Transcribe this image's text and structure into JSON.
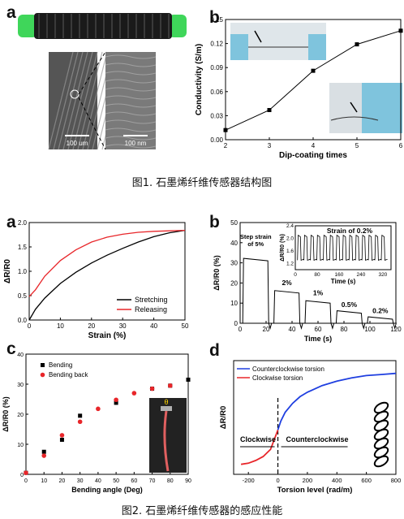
{
  "figure1": {
    "caption": "图1. 石墨烯纤维传感器结构图",
    "panel_a": {
      "letter": "a",
      "scale_left": "100 um",
      "scale_right": "100 nm"
    },
    "panel_b": {
      "letter": "b"
    }
  },
  "figure2": {
    "caption": "图2. 石墨烯纤维传感器的感应性能",
    "panel_a": {
      "letter": "a"
    },
    "panel_b": {
      "letter": "b",
      "inset_title": "Strain of 0.2%",
      "annotations": [
        "Step strain of 5%",
        "2%",
        "1%",
        "0.5%",
        "0.2%"
      ]
    },
    "panel_c": {
      "letter": "c",
      "photo_label": "θ"
    },
    "panel_d": {
      "letter": "d",
      "annotations": {
        "left": "Clockwise",
        "right": "Counterclockwise"
      }
    }
  },
  "colors": {
    "fiber_green": "#3fd65a",
    "stretch": "#000000",
    "release": "#e8262a",
    "ccw": "#1f3fe0",
    "cw": "#e8262a"
  },
  "chart_data": [
    {
      "id": "fig1b",
      "type": "line",
      "xlabel": "Dip-coating times",
      "ylabel": "Conductivity (S/m)",
      "xlim": [
        2,
        6
      ],
      "ylim": [
        0.0,
        0.15
      ],
      "xticks": [
        "2",
        "3",
        "4",
        "5",
        "6"
      ],
      "yticks": [
        "0.00",
        "0.03",
        "0.06",
        "0.09",
        "0.12",
        "0.15"
      ],
      "series": [
        {
          "x": [
            2,
            3,
            4,
            5,
            6
          ],
          "values": [
            0.012,
            0.037,
            0.086,
            0.119,
            0.136
          ]
        }
      ]
    },
    {
      "id": "fig2a",
      "type": "line",
      "xlabel": "Strain (%)",
      "ylabel": "ΔR/R0",
      "xlim": [
        0,
        50
      ],
      "ylim": [
        0.0,
        2.0
      ],
      "xticks": [
        "0",
        "10",
        "20",
        "30",
        "40",
        "50"
      ],
      "yticks": [
        "0.0",
        "0.5",
        "1.0",
        "1.5",
        "2.0"
      ],
      "legend": "bottom-right",
      "series": [
        {
          "name": "Stretching",
          "x": [
            0,
            2,
            5,
            10,
            15,
            20,
            25,
            30,
            35,
            40,
            45,
            50
          ],
          "values": [
            0.0,
            0.22,
            0.45,
            0.75,
            0.98,
            1.17,
            1.33,
            1.47,
            1.6,
            1.71,
            1.79,
            1.84
          ]
        },
        {
          "name": "Releasing",
          "x": [
            0,
            2,
            5,
            10,
            15,
            20,
            25,
            30,
            35,
            40,
            45,
            50
          ],
          "values": [
            0.48,
            0.62,
            0.9,
            1.22,
            1.44,
            1.6,
            1.7,
            1.76,
            1.8,
            1.82,
            1.83,
            1.84
          ]
        }
      ]
    },
    {
      "id": "fig2b",
      "type": "line",
      "xlabel": "Time (s)",
      "ylabel": "ΔR/R0 (%)",
      "xlim": [
        0,
        120
      ],
      "ylim": [
        0,
        50
      ],
      "xticks": [
        "0",
        "20",
        "40",
        "60",
        "80",
        "100",
        "120"
      ],
      "yticks": [
        "0",
        "10",
        "20",
        "30",
        "40",
        "50"
      ],
      "steps": [
        {
          "start": 2,
          "end": 22,
          "level": 31
        },
        {
          "start": 26,
          "end": 46,
          "level": 15
        },
        {
          "start": 50,
          "end": 70,
          "level": 10
        },
        {
          "start": 74,
          "end": 94,
          "level": 5
        },
        {
          "start": 98,
          "end": 118,
          "level": 2
        }
      ],
      "inset": {
        "xlabel": "Time (s)",
        "ylabel": "ΔR/R0 (%)",
        "xlim": [
          0,
          350
        ],
        "ylim": [
          1.0,
          2.4
        ],
        "xticks": [
          "0",
          "80",
          "160",
          "240",
          "320"
        ],
        "yticks": [
          "1.2",
          "1.6",
          "2.0",
          "2.4"
        ],
        "cycles": 14,
        "high": 2.1,
        "low": 1.3
      }
    },
    {
      "id": "fig2c",
      "type": "scatter",
      "xlabel": "Bending angle (Deg)",
      "ylabel": "ΔR/R0 (%)",
      "xlim": [
        0,
        90
      ],
      "ylim": [
        0,
        40
      ],
      "xticks": [
        "0",
        "10",
        "20",
        "30",
        "40",
        "50",
        "60",
        "70",
        "80",
        "90"
      ],
      "yticks": [
        "0",
        "10",
        "20",
        "30",
        "40"
      ],
      "legend": "top-left",
      "series": [
        {
          "name": "Bending",
          "x": [
            0,
            10,
            20,
            30,
            50,
            70,
            80,
            90
          ],
          "values": [
            0.5,
            7.5,
            11.5,
            19.5,
            23.8,
            28.5,
            29.5,
            31.5
          ]
        },
        {
          "name": "Bending back",
          "x": [
            0,
            10,
            20,
            30,
            40,
            50,
            60,
            70,
            80
          ],
          "values": [
            0.5,
            6.2,
            13.0,
            17.5,
            21.8,
            24.8,
            27.0,
            28.5,
            29.5
          ]
        }
      ]
    },
    {
      "id": "fig2d",
      "type": "line",
      "xlabel": "Torsion level (rad/m)",
      "ylabel": "ΔR/R0",
      "xlim": [
        -300,
        800
      ],
      "xticks": [
        "-200",
        "0",
        "200",
        "400",
        "600",
        "800"
      ],
      "legend": "top-left",
      "series": [
        {
          "name": "Counterclockwise torsion",
          "x": [
            0,
            20,
            50,
            100,
            150,
            200,
            300,
            400,
            500,
            600,
            700,
            800
          ],
          "values": [
            0.1,
            0.26,
            0.42,
            0.58,
            0.7,
            0.78,
            0.9,
            0.98,
            1.04,
            1.08,
            1.1,
            1.12
          ]
        },
        {
          "name": "Clockwise torsion",
          "x": [
            -250,
            -200,
            -150,
            -100,
            -50,
            0
          ],
          "values": [
            -0.52,
            -0.5,
            -0.45,
            -0.38,
            -0.25,
            0.1
          ]
        }
      ]
    }
  ]
}
